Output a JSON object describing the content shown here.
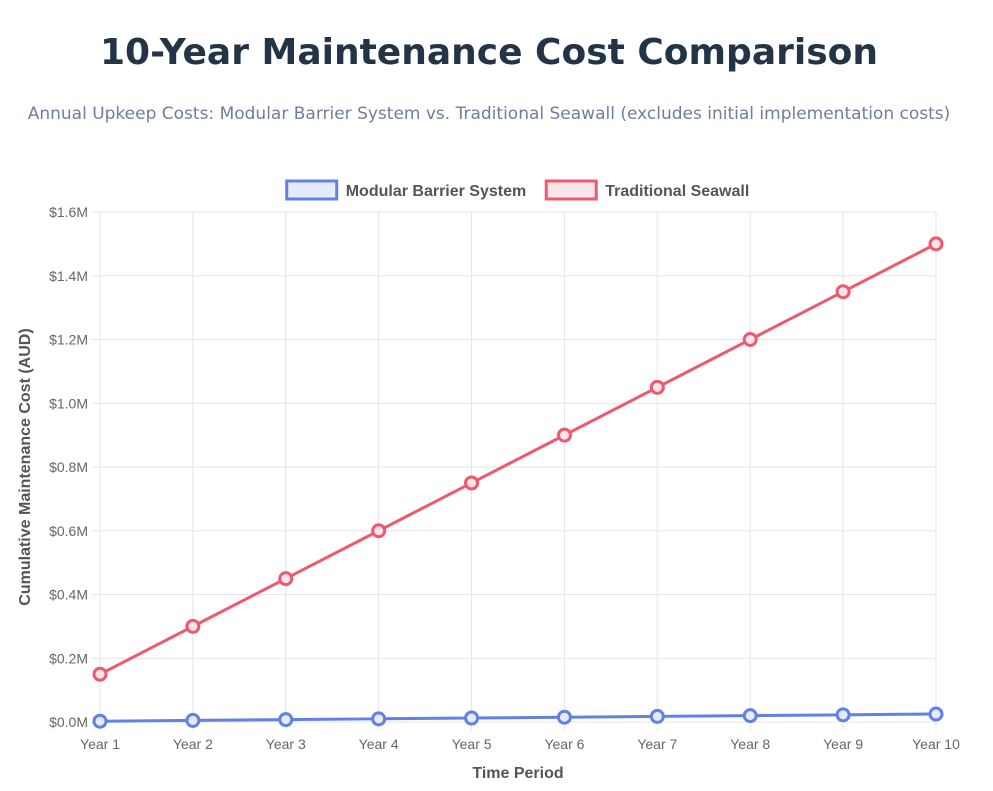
{
  "title": "10-Year Maintenance Cost Comparison",
  "subtitle": "Annual Upkeep Costs: Modular Barrier System vs. Traditional Seawall (excludes initial implementation costs)",
  "chart_data": {
    "type": "line",
    "title": "10-Year Maintenance Cost Comparison",
    "subtitle": "Annual Upkeep Costs: Modular Barrier System vs. Traditional Seawall (excludes initial implementation costs)",
    "xlabel": "Time Period",
    "ylabel": "Cumulative Maintenance Cost (AUD)",
    "categories": [
      "Year 1",
      "Year 2",
      "Year 3",
      "Year 4",
      "Year 5",
      "Year 6",
      "Year 7",
      "Year 8",
      "Year 9",
      "Year 10"
    ],
    "ylim": [
      0,
      1.6
    ],
    "y_unit": "millions AUD",
    "y_ticks": [
      "$0.0M",
      "$0.2M",
      "$0.4M",
      "$0.6M",
      "$0.8M",
      "$1.0M",
      "$1.2M",
      "$1.4M",
      "$1.6M"
    ],
    "y_tick_values": [
      0,
      0.2,
      0.4,
      0.6,
      0.8,
      1.0,
      1.2,
      1.4,
      1.6
    ],
    "grid": true,
    "legend_position": "top",
    "series": [
      {
        "name": "Modular Barrier System",
        "color": "#6281e5",
        "fill": "#e6ebfb",
        "values": [
          0.0025,
          0.005,
          0.0075,
          0.01,
          0.0125,
          0.015,
          0.0175,
          0.02,
          0.0225,
          0.025
        ]
      },
      {
        "name": "Traditional Seawall",
        "color": "#ed5a70",
        "fill": "#fde6ea",
        "values": [
          0.15,
          0.3,
          0.45,
          0.6,
          0.75,
          0.9,
          1.05,
          1.2,
          1.35,
          1.5
        ]
      }
    ]
  }
}
